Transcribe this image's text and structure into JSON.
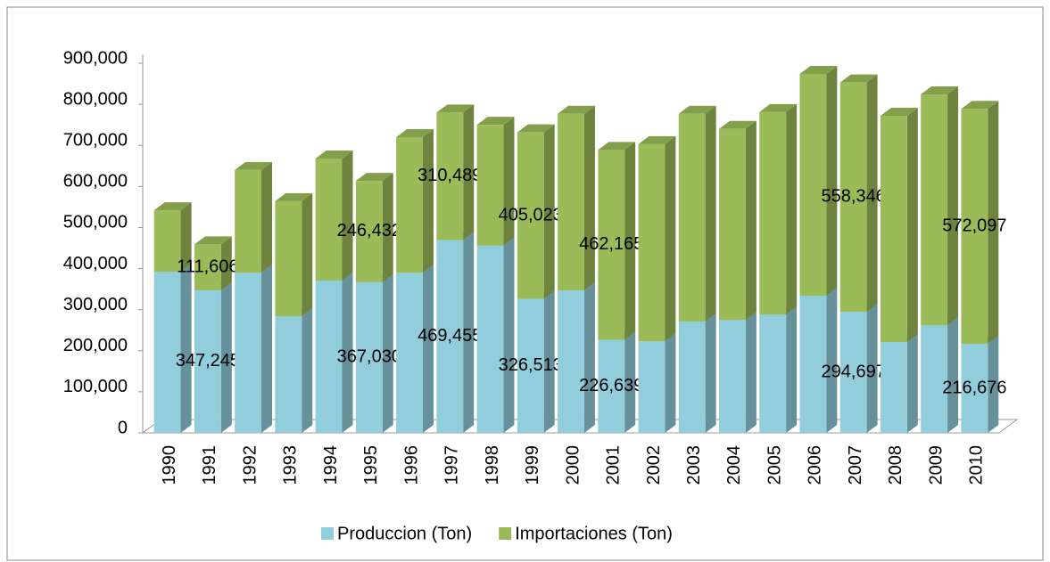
{
  "chart_data": {
    "type": "bar3d_stacked",
    "categories": [
      "1990",
      "1991",
      "1992",
      "1993",
      "1994",
      "1995",
      "1996",
      "1997",
      "1998",
      "1999",
      "2000",
      "2001",
      "2002",
      "2003",
      "2004",
      "2005",
      "2006",
      "2007",
      "2008",
      "2009",
      "2010"
    ],
    "series": [
      {
        "name": "Produccion (Ton)",
        "color": "#92cddc",
        "values": [
          392000,
          347245,
          390000,
          284000,
          371000,
          367030,
          390000,
          469455,
          456000,
          326513,
          347000,
          226639,
          223000,
          271000,
          275000,
          288000,
          334000,
          294697,
          221000,
          262000,
          216676
        ],
        "value_labels": [
          null,
          "347,245",
          null,
          null,
          null,
          "367,030",
          null,
          "469,455",
          null,
          "326,513",
          null,
          "226,639",
          null,
          null,
          null,
          null,
          null,
          "294,697",
          null,
          null,
          "216,676"
        ]
      },
      {
        "name": "Importaciones (Ton)",
        "color": "#9bbb59",
        "values": [
          150000,
          111606,
          250000,
          280000,
          297000,
          246432,
          330000,
          310489,
          294000,
          405023,
          430000,
          462165,
          480000,
          506000,
          465000,
          493000,
          540000,
          558346,
          551000,
          562000,
          572097
        ],
        "value_labels": [
          null,
          "111,606",
          null,
          null,
          null,
          "246,432",
          null,
          "310,489",
          null,
          "405,023",
          null,
          "462,165",
          null,
          null,
          null,
          null,
          null,
          "558,346",
          null,
          null,
          "572,097"
        ]
      }
    ],
    "ylim": [
      0,
      900000
    ],
    "yticks": [
      0,
      {
        "value": 100000,
        "label": "100,000"
      },
      {
        "value": 200000,
        "label": "200,000"
      },
      {
        "value": 300000,
        "label": "300,000"
      },
      {
        "value": 400000,
        "label": "400,000"
      },
      {
        "value": 500000,
        "label": "500,000"
      },
      {
        "value": 600000,
        "label": "600,000"
      },
      {
        "value": 700000,
        "label": "700,000"
      },
      {
        "value": 800000,
        "label": "800,000"
      },
      {
        "value": 900000,
        "label": "900,000"
      }
    ],
    "legend": "bottom"
  }
}
